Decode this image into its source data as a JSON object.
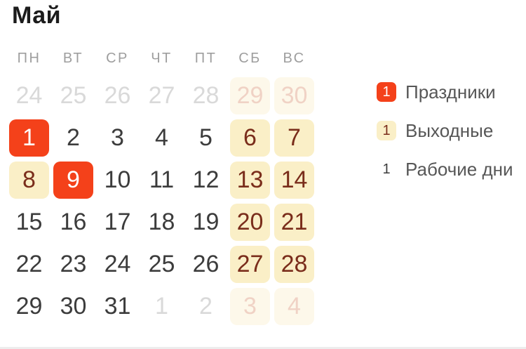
{
  "title": "Май",
  "weekday_headers": [
    "ПН",
    "ВТ",
    "СР",
    "ЧТ",
    "ПТ",
    "СБ",
    "ВС"
  ],
  "weeks": [
    [
      {
        "day": "24",
        "type": "other"
      },
      {
        "day": "25",
        "type": "other"
      },
      {
        "day": "26",
        "type": "other"
      },
      {
        "day": "27",
        "type": "other"
      },
      {
        "day": "28",
        "type": "other"
      },
      {
        "day": "29",
        "type": "other-weekend"
      },
      {
        "day": "30",
        "type": "other-weekend"
      }
    ],
    [
      {
        "day": "1",
        "type": "holiday"
      },
      {
        "day": "2",
        "type": "workday"
      },
      {
        "day": "3",
        "type": "workday"
      },
      {
        "day": "4",
        "type": "workday"
      },
      {
        "day": "5",
        "type": "workday"
      },
      {
        "day": "6",
        "type": "weekend"
      },
      {
        "day": "7",
        "type": "weekend"
      }
    ],
    [
      {
        "day": "8",
        "type": "weekend"
      },
      {
        "day": "9",
        "type": "holiday"
      },
      {
        "day": "10",
        "type": "workday"
      },
      {
        "day": "11",
        "type": "workday"
      },
      {
        "day": "12",
        "type": "workday"
      },
      {
        "day": "13",
        "type": "weekend"
      },
      {
        "day": "14",
        "type": "weekend"
      }
    ],
    [
      {
        "day": "15",
        "type": "workday"
      },
      {
        "day": "16",
        "type": "workday"
      },
      {
        "day": "17",
        "type": "workday"
      },
      {
        "day": "18",
        "type": "workday"
      },
      {
        "day": "19",
        "type": "workday"
      },
      {
        "day": "20",
        "type": "weekend"
      },
      {
        "day": "21",
        "type": "weekend"
      }
    ],
    [
      {
        "day": "22",
        "type": "workday"
      },
      {
        "day": "23",
        "type": "workday"
      },
      {
        "day": "24",
        "type": "workday"
      },
      {
        "day": "25",
        "type": "workday"
      },
      {
        "day": "26",
        "type": "workday"
      },
      {
        "day": "27",
        "type": "weekend"
      },
      {
        "day": "28",
        "type": "weekend"
      }
    ],
    [
      {
        "day": "29",
        "type": "workday"
      },
      {
        "day": "30",
        "type": "workday"
      },
      {
        "day": "31",
        "type": "workday"
      },
      {
        "day": "1",
        "type": "other"
      },
      {
        "day": "2",
        "type": "other"
      },
      {
        "day": "3",
        "type": "other-weekend"
      },
      {
        "day": "4",
        "type": "other-weekend"
      }
    ]
  ],
  "legend": [
    {
      "sample": "1",
      "label": "Праздники",
      "type": "holiday"
    },
    {
      "sample": "1",
      "label": "Выходные",
      "type": "weekend"
    },
    {
      "sample": "1",
      "label": "Рабочие дни",
      "type": "workday"
    }
  ],
  "colors": {
    "holiday_bg": "#F4411A",
    "holiday_text": "#FFFFFF",
    "weekend_bg": "#FAEFC7",
    "weekend_text": "#7A2D1B",
    "workday_text": "#3C3C3C",
    "other_month_text": "#D9D9D9",
    "other_weekend_bg": "#FDF8EA",
    "other_weekend_text": "#F0D2C5",
    "weekday_header_text": "#9E9E9E",
    "title_text": "#1C1C1C",
    "legend_label_text": "#575757",
    "divider": "#EDEDED"
  }
}
